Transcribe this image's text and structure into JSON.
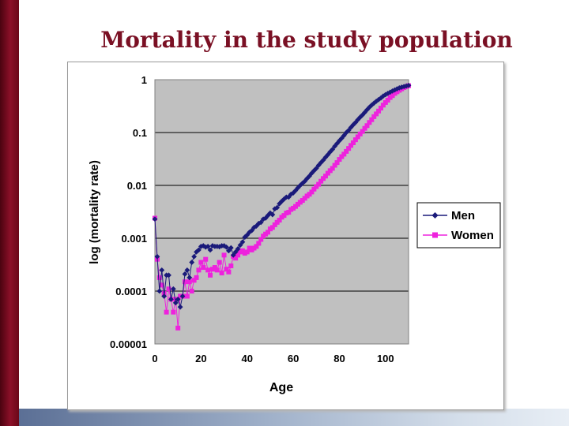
{
  "slide": {
    "title": "Mortality in the study population"
  },
  "colors": {
    "men": "#1a1a7a",
    "women": "#ee22dd",
    "plot_bg": "#c0c0c0",
    "title": "#7a1024"
  },
  "chart_data": {
    "type": "scatter",
    "xlabel": "Age",
    "ylabel": "log (mortality rate)",
    "xlim": [
      0,
      110
    ],
    "ylim": [
      1e-05,
      1
    ],
    "yscale": "log",
    "grid": "y",
    "legend": "right",
    "x_ticks": [
      0,
      20,
      40,
      60,
      80,
      100
    ],
    "x_tick_labels": [
      "0",
      "20",
      "40",
      "60",
      "80",
      "100"
    ],
    "y_ticks": [
      1,
      0.1,
      0.01,
      0.001,
      0.0001,
      1e-05
    ],
    "y_tick_labels": [
      "1",
      "0.1",
      "0.01",
      "0.001",
      "0.0001",
      "0.00001"
    ],
    "series": [
      {
        "name": "Men",
        "marker": "diamond",
        "color": "#1a1a7a",
        "x": [
          0,
          1,
          2,
          3,
          4,
          5,
          6,
          7,
          8,
          9,
          10,
          11,
          12,
          13,
          14,
          15,
          16,
          17,
          18,
          19,
          20,
          21,
          22,
          23,
          24,
          25,
          26,
          27,
          28,
          29,
          30,
          31,
          32,
          33,
          34,
          35,
          36,
          37,
          38,
          39,
          40,
          41,
          42,
          43,
          44,
          45,
          46,
          47,
          48,
          49,
          50,
          51,
          52,
          53,
          54,
          55,
          56,
          57,
          58,
          59,
          60,
          61,
          62,
          63,
          64,
          65,
          66,
          67,
          68,
          69,
          70,
          71,
          72,
          73,
          74,
          75,
          76,
          77,
          78,
          79,
          80,
          81,
          82,
          83,
          84,
          85,
          86,
          87,
          88,
          89,
          90,
          91,
          92,
          93,
          94,
          95,
          96,
          97,
          98,
          99,
          100,
          101,
          102,
          103,
          104,
          105,
          106,
          107,
          108,
          109,
          110
        ],
        "y": [
          0.0023,
          0.00045,
          0.0001,
          0.00025,
          8e-05,
          0.0002,
          0.0002,
          7e-05,
          0.00011,
          6e-05,
          7e-05,
          5e-05,
          8e-05,
          0.00021,
          0.00025,
          0.00018,
          0.00035,
          0.00045,
          0.00055,
          0.0006,
          0.0007,
          0.00072,
          0.00068,
          0.0007,
          0.0006,
          0.00072,
          0.0007,
          0.0007,
          0.00069,
          0.00072,
          0.00072,
          0.00068,
          0.00058,
          0.00066,
          0.00048,
          0.00055,
          0.00063,
          0.00074,
          0.00085,
          0.00105,
          0.00115,
          0.0013,
          0.0014,
          0.0016,
          0.0017,
          0.0019,
          0.002,
          0.0023,
          0.0024,
          0.0027,
          0.003,
          0.0028,
          0.0036,
          0.0038,
          0.0045,
          0.005,
          0.0055,
          0.006,
          0.006,
          0.0068,
          0.0072,
          0.008,
          0.009,
          0.01,
          0.011,
          0.012,
          0.0135,
          0.015,
          0.017,
          0.019,
          0.021,
          0.024,
          0.027,
          0.03,
          0.034,
          0.038,
          0.043,
          0.048,
          0.055,
          0.062,
          0.07,
          0.078,
          0.088,
          0.1,
          0.11,
          0.125,
          0.14,
          0.155,
          0.175,
          0.195,
          0.215,
          0.24,
          0.27,
          0.3,
          0.33,
          0.36,
          0.39,
          0.42,
          0.45,
          0.49,
          0.52,
          0.55,
          0.58,
          0.61,
          0.64,
          0.67,
          0.7,
          0.72,
          0.74,
          0.76,
          0.78
        ]
      },
      {
        "name": "Women",
        "marker": "square",
        "color": "#ee22dd",
        "x": [
          0,
          1,
          2,
          3,
          4,
          5,
          6,
          7,
          8,
          9,
          10,
          11,
          12,
          13,
          14,
          15,
          16,
          17,
          18,
          19,
          20,
          21,
          22,
          23,
          24,
          25,
          26,
          27,
          28,
          29,
          30,
          31,
          32,
          33,
          34,
          35,
          36,
          37,
          38,
          39,
          40,
          41,
          42,
          43,
          44,
          45,
          46,
          47,
          48,
          49,
          50,
          51,
          52,
          53,
          54,
          55,
          56,
          57,
          58,
          59,
          60,
          61,
          62,
          63,
          64,
          65,
          66,
          67,
          68,
          69,
          70,
          71,
          72,
          73,
          74,
          75,
          76,
          77,
          78,
          79,
          80,
          81,
          82,
          83,
          84,
          85,
          86,
          87,
          88,
          89,
          90,
          91,
          92,
          93,
          94,
          95,
          96,
          97,
          98,
          99,
          100,
          101,
          102,
          103,
          104,
          105,
          106,
          107,
          108,
          109,
          110
        ],
        "y": [
          0.0024,
          0.0004,
          0.00018,
          0.00013,
          9e-05,
          4e-05,
          0.00011,
          7e-05,
          4e-05,
          7e-05,
          2e-05,
          8e-05,
          8e-05,
          0.00015,
          8e-05,
          0.00015,
          0.0001,
          0.00016,
          0.00018,
          0.00025,
          0.00035,
          0.00028,
          0.0004,
          0.00025,
          0.0002,
          0.00026,
          0.00028,
          0.00025,
          0.00035,
          0.00022,
          0.00048,
          0.00026,
          0.00023,
          0.0003,
          0.00045,
          0.00042,
          0.00048,
          0.00055,
          0.00058,
          0.00052,
          0.00055,
          0.00065,
          0.0006,
          0.00065,
          0.0007,
          0.0008,
          0.00095,
          0.0011,
          0.0012,
          0.0013,
          0.0015,
          0.0016,
          0.0018,
          0.002,
          0.0022,
          0.0025,
          0.0027,
          0.003,
          0.0031,
          0.0035,
          0.0037,
          0.004,
          0.0044,
          0.0048,
          0.0052,
          0.0057,
          0.0063,
          0.0068,
          0.0075,
          0.0085,
          0.0095,
          0.0105,
          0.012,
          0.0135,
          0.015,
          0.017,
          0.019,
          0.021,
          0.024,
          0.027,
          0.031,
          0.035,
          0.039,
          0.044,
          0.05,
          0.057,
          0.064,
          0.073,
          0.083,
          0.094,
          0.105,
          0.12,
          0.135,
          0.155,
          0.175,
          0.2,
          0.225,
          0.255,
          0.29,
          0.33,
          0.37,
          0.41,
          0.46,
          0.5,
          0.55,
          0.59,
          0.63,
          0.67,
          0.71,
          0.74,
          0.77
        ]
      }
    ]
  }
}
